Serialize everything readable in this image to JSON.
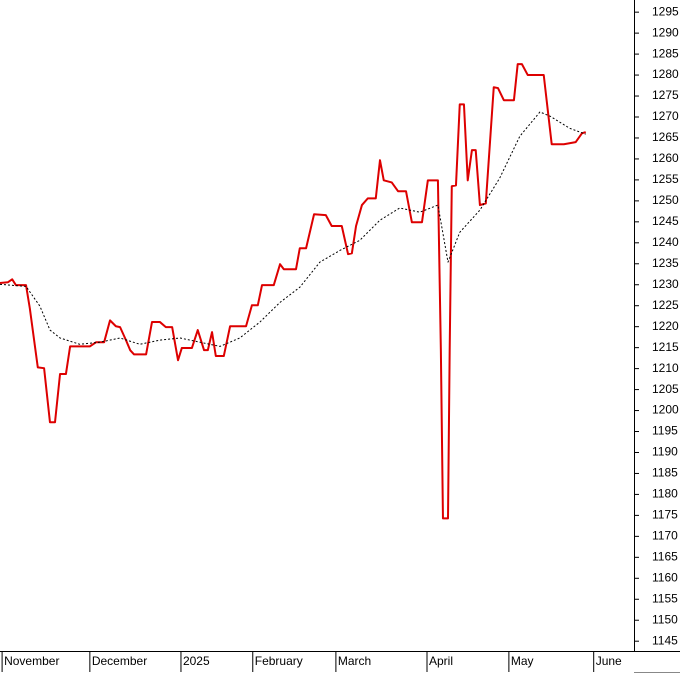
{
  "chart_data": {
    "type": "line",
    "xlim": [
      0,
      151
    ],
    "xticks": [
      {
        "value": 0.5,
        "label": "November"
      },
      {
        "value": 21.4,
        "label": "December"
      },
      {
        "value": 43.1,
        "label": "2025"
      },
      {
        "value": 60.2,
        "label": "February"
      },
      {
        "value": 80,
        "label": "March"
      },
      {
        "value": 101.7,
        "label": "April"
      },
      {
        "value": 121.2,
        "label": "May"
      },
      {
        "value": 141.4,
        "label": "June"
      }
    ],
    "ylim": [
      1142.9,
      1297.9
    ],
    "yticks": [
      1145,
      1150,
      1155,
      1160,
      1165,
      1170,
      1175,
      1180,
      1185,
      1190,
      1195,
      1200,
      1205,
      1210,
      1215,
      1220,
      1225,
      1230,
      1235,
      1240,
      1245,
      1250,
      1255,
      1260,
      1265,
      1270,
      1275,
      1280,
      1285,
      1290,
      1295
    ],
    "series": [
      {
        "color": "#dd0000",
        "dashed": false,
        "x": [
          0,
          1.9,
          2.9,
          3.8,
          6.2,
          7.1,
          9.0,
          10.5,
          11.9,
          13.1,
          14.3,
          15.7,
          16.7,
          21.4,
          22.9,
          24.8,
          26.2,
          27.6,
          28.6,
          30.0,
          31.0,
          31.9,
          34.8,
          36.2,
          38.1,
          39.5,
          41.0,
          42.4,
          43.3,
          45.7,
          47.1,
          48.6,
          49.5,
          50.5,
          51.4,
          53.3,
          54.8,
          58.6,
          60.0,
          61.4,
          62.4,
          65.2,
          66.7,
          67.6,
          70.5,
          71.4,
          72.9,
          74.8,
          77.6,
          79.0,
          81.4,
          82.9,
          83.8,
          84.8,
          86.2,
          87.6,
          89.5,
          90.5,
          91.4,
          93.3,
          94.8,
          96.7,
          98.1,
          100.5,
          101.9,
          104.3,
          105.0,
          105.5,
          106.7,
          107.1,
          107.6,
          108.6,
          109.5,
          110.5,
          111.4,
          112.4,
          113.3,
          114.3,
          115.7,
          117.6,
          118.6,
          120.0,
          122.4,
          123.3,
          124.3,
          125.7,
          129.5,
          131.4,
          134.3,
          137.1,
          138.6,
          139.5
        ],
        "values": [
          1230.4,
          1230.6,
          1231.3,
          1229.9,
          1229.9,
          1224.4,
          1210.3,
          1210.1,
          1197.2,
          1197.2,
          1208.7,
          1208.7,
          1215.3,
          1215.3,
          1216.3,
          1216.3,
          1221.5,
          1220.1,
          1219.9,
          1216.8,
          1214.4,
          1213.4,
          1213.4,
          1221.1,
          1221.1,
          1219.9,
          1219.9,
          1212.0,
          1214.9,
          1214.9,
          1219.2,
          1214.4,
          1214.4,
          1218.7,
          1213.0,
          1213.0,
          1220.1,
          1220.1,
          1225.1,
          1225.1,
          1229.9,
          1229.9,
          1234.9,
          1233.7,
          1233.7,
          1238.7,
          1238.7,
          1246.8,
          1246.6,
          1244.0,
          1244.0,
          1237.3,
          1237.5,
          1244.0,
          1249.0,
          1250.6,
          1250.6,
          1259.7,
          1254.9,
          1254.4,
          1252.3,
          1252.3,
          1244.9,
          1244.9,
          1254.9,
          1254.9,
          1214.4,
          1174.3,
          1174.3,
          1214.4,
          1253.5,
          1253.7,
          1273.0,
          1273.0,
          1254.9,
          1262.1,
          1262.1,
          1249.0,
          1249.4,
          1277.1,
          1276.9,
          1274.0,
          1274.0,
          1282.6,
          1282.6,
          1280.0,
          1280.0,
          1263.5,
          1263.5,
          1264.0,
          1266.1,
          1266.4
        ]
      },
      {
        "color": "#000000",
        "dashed": true,
        "x": [
          0,
          6.2,
          9.5,
          11.9,
          14.3,
          19.0,
          23.8,
          28.6,
          33.3,
          38.1,
          42.9,
          47.6,
          52.4,
          57.1,
          61.9,
          66.7,
          71.4,
          76.2,
          81.0,
          85.7,
          90.5,
          95.2,
          100.0,
          104.3,
          106.7,
          109.5,
          114.3,
          119.0,
          123.8,
          128.6,
          131.0,
          135.7,
          139.5
        ],
        "values": [
          1230.1,
          1229.6,
          1224.9,
          1219.2,
          1217.3,
          1215.8,
          1216.3,
          1217.3,
          1215.8,
          1216.8,
          1217.3,
          1216.3,
          1215.3,
          1217.3,
          1221.1,
          1225.8,
          1229.4,
          1235.4,
          1238.2,
          1240.6,
          1245.4,
          1248.3,
          1247.3,
          1249.0,
          1235.4,
          1242.5,
          1247.8,
          1255.4,
          1265.4,
          1271.2,
          1270.2,
          1267.3,
          1265.9
        ]
      }
    ]
  }
}
